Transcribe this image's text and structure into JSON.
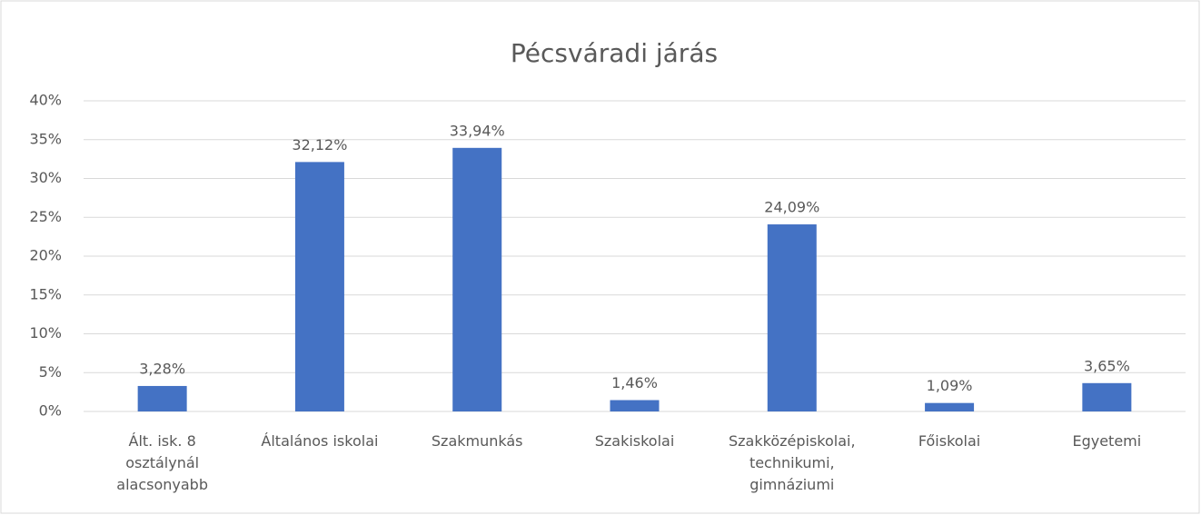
{
  "chart_data": {
    "type": "bar",
    "title": "Pécsváradi járás",
    "categories": [
      "Ált. isk. 8 osztálynál alacsonyabb",
      "Általános iskolai",
      "Szakmunkás",
      "Szakiskolai",
      "Szakközépiskolai, technikumi, gimnáziumi",
      "Főiskolai",
      "Egyetemi"
    ],
    "values": [
      3.28,
      32.12,
      33.94,
      1.46,
      24.09,
      1.09,
      3.65
    ],
    "value_labels": [
      "3,28%",
      "32,12%",
      "33,94%",
      "1,46%",
      "24,09%",
      "1,09%",
      "3,65%"
    ],
    "color": "#4472c4",
    "ylim": [
      0,
      40
    ],
    "yticks": [
      {
        "value": 0,
        "label": "0%"
      },
      {
        "value": 5,
        "label": "5%"
      },
      {
        "value": 10,
        "label": "10%"
      },
      {
        "value": 15,
        "label": "15%"
      },
      {
        "value": 20,
        "label": "20%"
      },
      {
        "value": 25,
        "label": "25%"
      },
      {
        "value": 30,
        "label": "30%"
      },
      {
        "value": 35,
        "label": "35%"
      },
      {
        "value": 40,
        "label": "40%"
      }
    ],
    "grid": true
  }
}
